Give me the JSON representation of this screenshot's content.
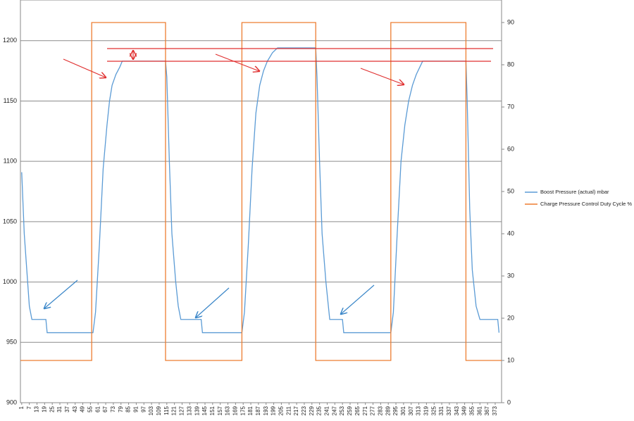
{
  "chart_data": {
    "type": "line",
    "xlim": [
      0,
      378
    ],
    "xticks": [
      1,
      7,
      13,
      19,
      25,
      31,
      37,
      43,
      49,
      55,
      61,
      67,
      73,
      79,
      85,
      91,
      97,
      103,
      109,
      115,
      121,
      127,
      133,
      139,
      145,
      151,
      157,
      163,
      169,
      175,
      181,
      187,
      193,
      199,
      205,
      211,
      217,
      223,
      229,
      235,
      241,
      247,
      253,
      259,
      265,
      271,
      277,
      283,
      289,
      295,
      301,
      307,
      313,
      319,
      325,
      331,
      337,
      343,
      349,
      355,
      361,
      367,
      373
    ],
    "ylim": [
      900,
      1233.7
    ],
    "yticks": [
      900,
      950,
      1000,
      1050,
      1100,
      1150,
      1200
    ],
    "y2lim": [
      0,
      95.33
    ],
    "y2ticks": [
      0,
      10,
      20,
      30,
      40,
      50,
      60,
      70,
      80,
      90
    ],
    "grid": true,
    "legend": "right",
    "series": [
      {
        "name": "Boost Pressure (actual)  mbar",
        "color": "#5b9bd5",
        "x": [
          1,
          3,
          5,
          7,
          9,
          20,
          21,
          57,
          59,
          62,
          65,
          68,
          70,
          72,
          75,
          78,
          80,
          114,
          115,
          117,
          119,
          122,
          124,
          126,
          142,
          143,
          174,
          176,
          179,
          182,
          185,
          188,
          191,
          194,
          198,
          202,
          232,
          233,
          235,
          237,
          240,
          243,
          253,
          254,
          291,
          293,
          296,
          299,
          302,
          305,
          308,
          311,
          316,
          350,
          351,
          353,
          355,
          358,
          361,
          375,
          376
        ],
        "values": [
          1091,
          1040,
          1010,
          980,
          969,
          969,
          958,
          958,
          975,
          1030,
          1094,
          1130,
          1150,
          1163,
          1172,
          1178,
          1183,
          1183,
          1170,
          1100,
          1040,
          1000,
          980,
          969,
          969,
          958,
          958,
          975,
          1030,
          1094,
          1140,
          1163,
          1175,
          1183,
          1190,
          1194,
          1194,
          1170,
          1100,
          1040,
          1000,
          969,
          969,
          958,
          958,
          975,
          1040,
          1100,
          1130,
          1150,
          1163,
          1172,
          1183,
          1183,
          1150,
          1060,
          1010,
          980,
          969,
          969,
          958
        ]
      },
      {
        "name": "Charge Pressure Control Duty Cycle  %",
        "color": "#ed7d31",
        "axis": "y2",
        "x": [
          0,
          56,
          56,
          114,
          114,
          174,
          174,
          232,
          232,
          291,
          291,
          350,
          350,
          378
        ],
        "values": [
          10,
          10,
          90,
          90,
          10,
          10,
          90,
          90,
          10,
          10,
          90,
          90,
          10,
          10
        ]
      }
    ]
  }
}
